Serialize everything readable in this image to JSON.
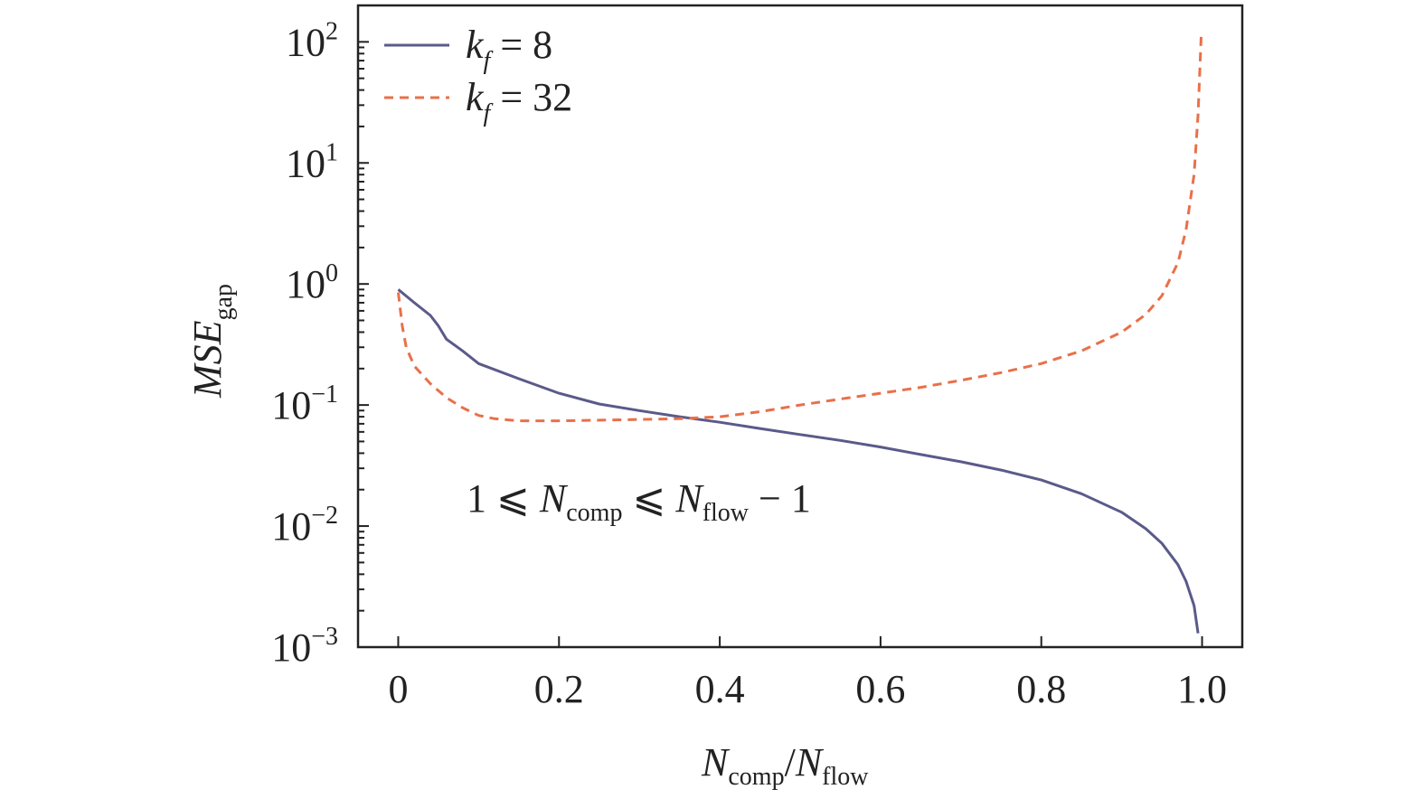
{
  "chart_data": {
    "type": "line",
    "y_scale": "log",
    "xlim": [
      -0.05,
      1.05
    ],
    "ylim": [
      0.001,
      200
    ],
    "x_ticks": [
      0,
      0.2,
      0.4,
      0.6,
      0.8,
      1.0
    ],
    "x_tick_labels": [
      "0",
      "0.2",
      "0.4",
      "0.6",
      "0.8",
      "1.0"
    ],
    "y_ticks": [
      {
        "value": 0.001,
        "base": "10",
        "exp": "−3"
      },
      {
        "value": 0.01,
        "base": "10",
        "exp": "−2"
      },
      {
        "value": 0.1,
        "base": "10",
        "exp": "−1"
      },
      {
        "value": 1,
        "base": "10",
        "exp": "0"
      },
      {
        "value": 10,
        "base": "10",
        "exp": "1"
      },
      {
        "value": 100,
        "base": "10",
        "exp": "2"
      }
    ],
    "xlabel": {
      "main1": "N",
      "sub1": "comp",
      "slash": "/",
      "main2": "N",
      "sub2": "flow"
    },
    "ylabel": {
      "main": "MSE",
      "sub": "gap"
    },
    "legend_position": "top-left",
    "annotation": {
      "pre": "1 ⩽ ",
      "n1": "N",
      "s1": "comp",
      "mid": " ⩽ ",
      "n2": "N",
      "s2": "flow",
      "post": " − 1"
    },
    "grid": false,
    "series": [
      {
        "name": "k_f = 8",
        "legend": {
          "k": "k",
          "sub": "f",
          "rest": " = 8"
        },
        "style": "solid",
        "color": "#5a5a8a",
        "x": [
          0,
          0.02,
          0.04,
          0.05,
          0.06,
          0.08,
          0.1,
          0.15,
          0.2,
          0.25,
          0.3,
          0.35,
          0.4,
          0.45,
          0.5,
          0.55,
          0.6,
          0.65,
          0.7,
          0.75,
          0.8,
          0.85,
          0.9,
          0.93,
          0.95,
          0.97,
          0.98,
          0.99,
          0.995
        ],
        "y": [
          0.9,
          0.7,
          0.55,
          0.45,
          0.35,
          0.28,
          0.22,
          0.165,
          0.125,
          0.102,
          0.09,
          0.08,
          0.072,
          0.064,
          0.057,
          0.051,
          0.045,
          0.039,
          0.034,
          0.029,
          0.024,
          0.0185,
          0.013,
          0.0095,
          0.0072,
          0.0048,
          0.0035,
          0.0022,
          0.0013
        ]
      },
      {
        "name": "k_f = 32",
        "legend": {
          "k": "k",
          "sub": "f",
          "rest": " = 32"
        },
        "style": "dashed",
        "color": "#e8704a",
        "x": [
          0,
          0.005,
          0.01,
          0.02,
          0.04,
          0.06,
          0.08,
          0.1,
          0.12,
          0.15,
          0.2,
          0.25,
          0.3,
          0.35,
          0.4,
          0.45,
          0.5,
          0.55,
          0.6,
          0.65,
          0.7,
          0.75,
          0.8,
          0.85,
          0.9,
          0.93,
          0.95,
          0.97,
          0.98,
          0.99,
          0.995,
          0.999
        ],
        "y": [
          0.85,
          0.45,
          0.3,
          0.21,
          0.15,
          0.115,
          0.095,
          0.082,
          0.077,
          0.074,
          0.074,
          0.075,
          0.076,
          0.077,
          0.08,
          0.088,
          0.1,
          0.112,
          0.125,
          0.14,
          0.16,
          0.185,
          0.22,
          0.28,
          0.4,
          0.56,
          0.8,
          1.5,
          2.8,
          8,
          25,
          120
        ]
      }
    ]
  }
}
